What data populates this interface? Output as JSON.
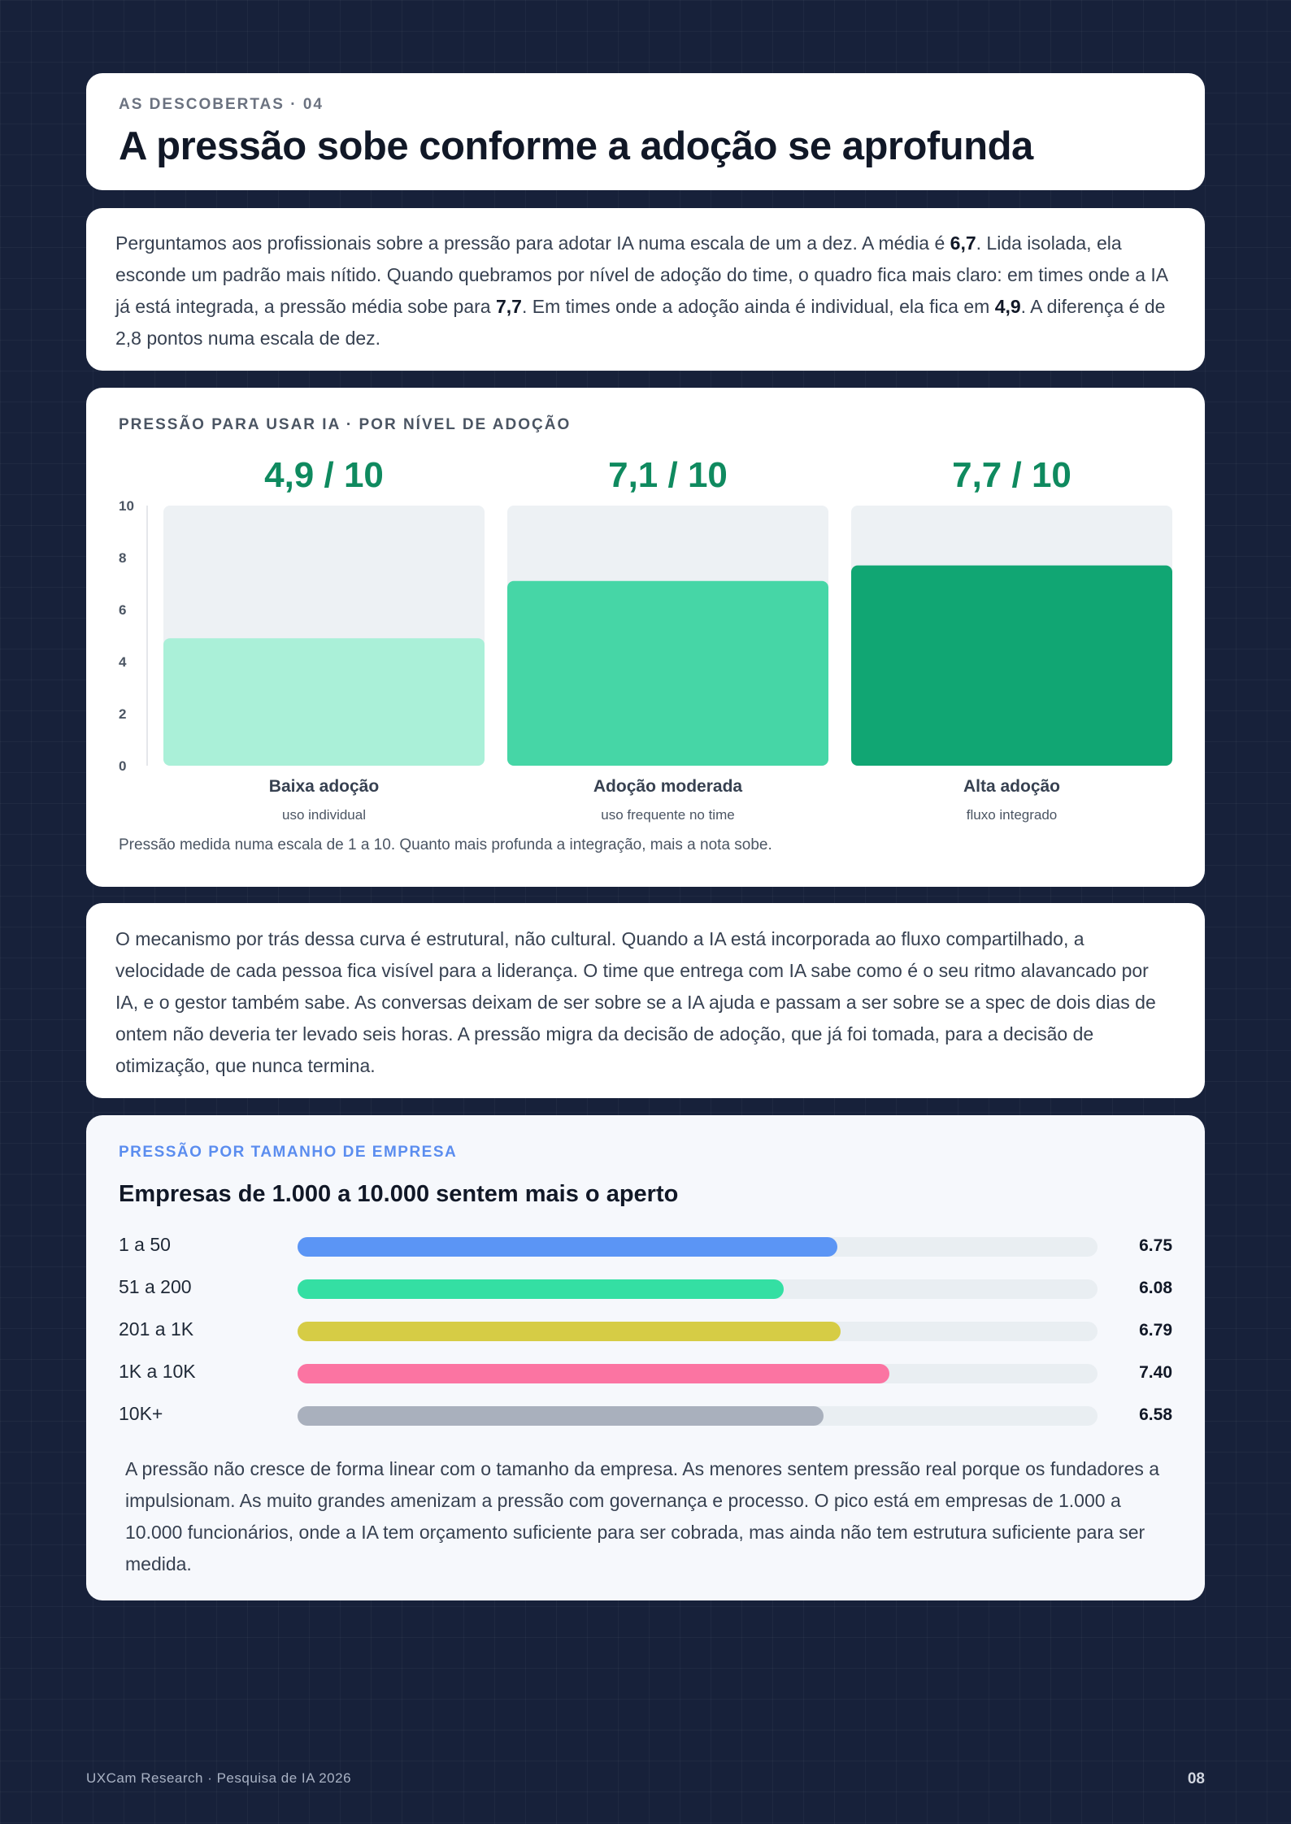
{
  "header": {
    "kicker": "AS DESCOBERTAS · 04",
    "title": "A pressão sobe conforme a adoção se aprofunda"
  },
  "intro": {
    "segments": [
      {
        "text": "Perguntamos aos profissionais sobre a pressão para adotar IA numa escala de um a dez. A média é ",
        "bold": false
      },
      {
        "text": "6,7",
        "bold": true
      },
      {
        "text": ". Lida isolada, ela esconde um padrão mais nítido. Quando quebramos por nível de adoção do time, o quadro fica mais claro: em times onde a IA já está integrada, a pressão média sobe para ",
        "bold": false
      },
      {
        "text": "7,7",
        "bold": true
      },
      {
        "text": ". Em times onde a adoção ainda é individual, ela fica em ",
        "bold": false
      },
      {
        "text": "4,9",
        "bold": true
      },
      {
        "text": ". A diferença é de 2,8 pontos numa escala de dez.",
        "bold": false
      }
    ]
  },
  "chart_data": {
    "type": "bar",
    "title": "PRESSÃO PARA USAR IA · POR NÍVEL DE ADOÇÃO",
    "categories": [
      "Baixa adoção",
      "Adoção moderada",
      "Alta adoção"
    ],
    "sublabels": [
      "uso individual",
      "uso frequente no time",
      "fluxo integrado"
    ],
    "values": [
      4.9,
      7.1,
      7.7
    ],
    "value_labels": [
      "4,9 / 10",
      "7,1 / 10",
      "7,7 / 10"
    ],
    "colors": [
      "#aaf0d8",
      "#46d6a6",
      "#11a673"
    ],
    "ylim": [
      0,
      10
    ],
    "yticks": [
      0,
      2,
      4,
      6,
      8,
      10
    ],
    "note": "Pressão medida numa escala de 1 a 10. Quanto mais profunda a integração, mais a nota sobe."
  },
  "mechanism": {
    "text": "O mecanismo por trás dessa curva é estrutural, não cultural. Quando a IA está incorporada ao fluxo compartilhado, a velocidade de cada pessoa fica visível para a liderança. O time que entrega com IA sabe como é o seu ritmo alavancado por IA, e o gestor também sabe. As conversas deixam de ser sobre se a IA ajuda e passam a ser sobre se a spec de dois dias de ontem não deveria ter levado seis horas. A pressão migra da decisão de adoção, que já foi tomada, para a decisão de otimização, que nunca termina."
  },
  "size_chart": {
    "kicker": "PRESSÃO POR TAMANHO DE EMPRESA",
    "title": "Empresas de 1.000 a 10.000 sentem mais o aperto",
    "max": 10,
    "rows": [
      {
        "label": "1 a 50",
        "value": 6.75,
        "display": "6.75",
        "color": "#5b95f5"
      },
      {
        "label": "51 a 200",
        "value": 6.08,
        "display": "6.08",
        "color": "#34dfa3"
      },
      {
        "label": "201 a 1K",
        "value": 6.79,
        "display": "6.79",
        "color": "#d6cc45"
      },
      {
        "label": "1K a 10K",
        "value": 7.4,
        "display": "7.40",
        "color": "#fb74a2"
      },
      {
        "label": "10K+",
        "value": 6.58,
        "display": "6.58",
        "color": "#a9b0bd"
      }
    ],
    "text": "A pressão não cresce de forma linear com o tamanho da empresa. As menores sentem pressão real porque os fundadores a impulsionam. As muito grandes amenizam a pressão com governança e processo. O pico está em empresas de 1.000 a 10.000 funcionários, onde a IA tem orçamento suficiente para ser cobrada, mas ainda não tem estrutura suficiente para ser medida."
  },
  "footer": {
    "left": "UXCam Research · Pesquisa de IA 2026",
    "page": "08"
  }
}
